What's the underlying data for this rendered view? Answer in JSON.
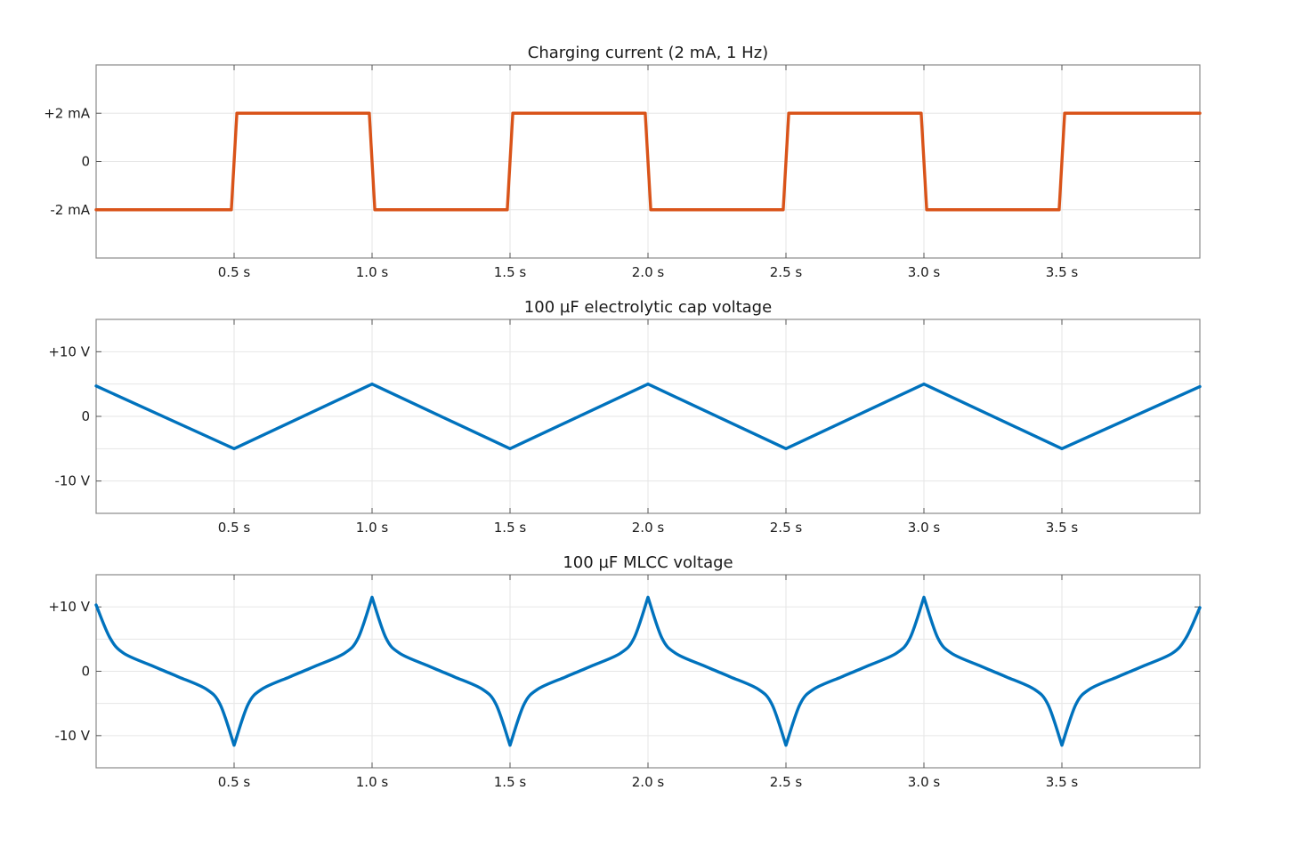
{
  "chart_data": [
    {
      "type": "line",
      "title": "Charging current (2 mA, 1 Hz)",
      "xlim": [
        0,
        4
      ],
      "ylim": [
        -4,
        4
      ],
      "grid": true,
      "color": "#D95319",
      "x_ticks": [
        0.5,
        1.0,
        1.5,
        2.0,
        2.5,
        3.0,
        3.5
      ],
      "x_tick_labels": [
        "0.5 s",
        "1.0 s",
        "1.5 s",
        "2.0 s",
        "2.5 s",
        "3.0 s",
        "3.5 s"
      ],
      "y_ticks": [
        2,
        0,
        -2
      ],
      "y_tick_labels": [
        "+2 mA",
        "0",
        "-2 mA"
      ],
      "y_grid": [
        2,
        0,
        -2
      ],
      "series": [
        {
          "x": [
            0,
            0.49,
            0.5,
            0.51,
            0.99,
            1.0,
            1.01,
            1.49,
            1.5,
            1.51,
            1.99,
            2.0,
            2.01,
            2.49,
            2.5,
            2.51,
            2.99,
            3.0,
            3.01,
            3.49,
            3.5,
            3.51,
            4.0
          ],
          "values": [
            -2,
            -2,
            0,
            2,
            2,
            0,
            -2,
            -2,
            0,
            2,
            2,
            0,
            -2,
            -2,
            0,
            2,
            2,
            0,
            -2,
            -2,
            0,
            2,
            2
          ]
        }
      ]
    },
    {
      "type": "line",
      "title": "100 µF electrolytic cap voltage",
      "xlim": [
        0,
        4
      ],
      "ylim": [
        -15,
        15
      ],
      "grid": true,
      "color": "#0072BD",
      "x_ticks": [
        0.5,
        1.0,
        1.5,
        2.0,
        2.5,
        3.0,
        3.5
      ],
      "x_tick_labels": [
        "0.5 s",
        "1.0 s",
        "1.5 s",
        "2.0 s",
        "2.5 s",
        "3.0 s",
        "3.5 s"
      ],
      "y_ticks": [
        10,
        0,
        -10
      ],
      "y_tick_labels": [
        "+10 V",
        "0",
        "-10 V"
      ],
      "y_grid": [
        10,
        5,
        0,
        -5,
        -10
      ],
      "series": [
        {
          "x": [
            0,
            0.5,
            1.0,
            1.5,
            2.0,
            2.5,
            3.0,
            3.5,
            4.0
          ],
          "values": [
            4.7,
            -5,
            5,
            -5,
            5,
            -5,
            5,
            -5,
            4.6
          ]
        }
      ]
    },
    {
      "type": "line",
      "title": "100 µF MLCC voltage",
      "xlim": [
        0,
        4
      ],
      "ylim": [
        -15,
        15
      ],
      "grid": true,
      "color": "#0072BD",
      "x_ticks": [
        0.5,
        1.0,
        1.5,
        2.0,
        2.5,
        3.0,
        3.5
      ],
      "x_tick_labels": [
        "0.5 s",
        "1.0 s",
        "1.5 s",
        "2.0 s",
        "2.5 s",
        "3.0 s",
        "3.5 s"
      ],
      "y_ticks": [
        10,
        0,
        -10
      ],
      "y_tick_labels": [
        "+10 V",
        "0",
        "-10 V"
      ],
      "y_grid": [
        10,
        5,
        0,
        -5,
        -10
      ],
      "series": [
        {
          "x": [
            0,
            0.05,
            0.1,
            0.2,
            0.25,
            0.3,
            0.4,
            0.45,
            0.5,
            0.55,
            0.6,
            0.7,
            0.75,
            0.8,
            0.9,
            0.95,
            1.0,
            1.05,
            1.1,
            1.2,
            1.25,
            1.3,
            1.4,
            1.45,
            1.5,
            1.55,
            1.6,
            1.7,
            1.75,
            1.8,
            1.9,
            1.95,
            2.0,
            2.05,
            2.1,
            2.2,
            2.25,
            2.3,
            2.4,
            2.45,
            2.5,
            2.55,
            2.6,
            2.7,
            2.75,
            2.8,
            2.9,
            2.95,
            3.0,
            3.05,
            3.1,
            3.2,
            3.25,
            3.3,
            3.4,
            3.45,
            3.5,
            3.55,
            3.6,
            3.7,
            3.75,
            3.8,
            3.9,
            3.95,
            4.0
          ],
          "values": [
            10.3,
            5.2,
            2.8,
            0.9,
            0,
            -0.9,
            -2.8,
            -5.2,
            -11.5,
            -5.2,
            -2.8,
            -0.9,
            0,
            0.9,
            2.8,
            5.2,
            11.5,
            5.2,
            2.8,
            0.9,
            0,
            -0.9,
            -2.8,
            -5.2,
            -11.5,
            -5.2,
            -2.8,
            -0.9,
            0,
            0.9,
            2.8,
            5.2,
            11.5,
            5.2,
            2.8,
            0.9,
            0,
            -0.9,
            -2.8,
            -5.2,
            -11.5,
            -5.2,
            -2.8,
            -0.9,
            0,
            0.9,
            2.8,
            5.2,
            11.5,
            5.2,
            2.8,
            0.9,
            0,
            -0.9,
            -2.8,
            -5.2,
            -11.5,
            -5.2,
            -2.8,
            -0.9,
            0,
            0.9,
            2.8,
            5.2,
            9.9
          ]
        }
      ]
    }
  ]
}
